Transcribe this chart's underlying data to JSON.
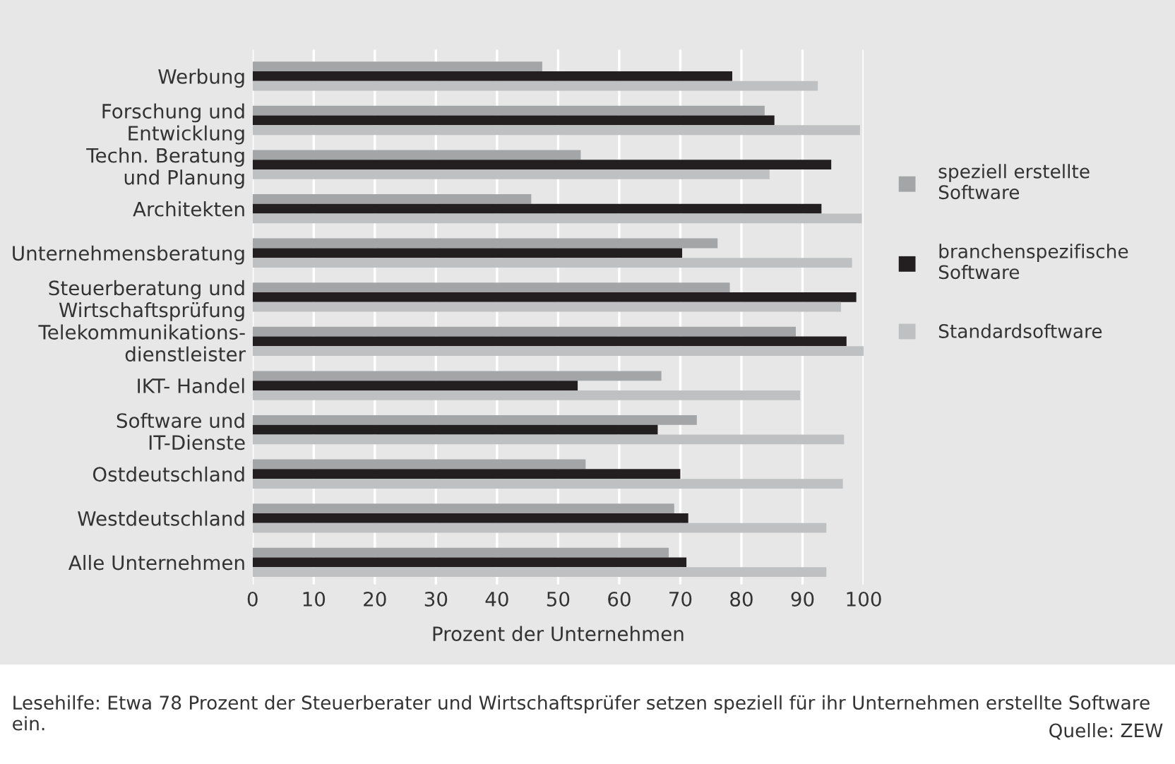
{
  "chart_data": {
    "type": "bar",
    "orientation": "horizontal",
    "xlabel": "Prozent der Unternehmen",
    "categories": [
      "Werbung",
      "Forschung und\nEntwicklung",
      "Techn. Beratung\nund Planung",
      "Architekten",
      "Unternehmensberatung",
      "Steuerberatung und\nWirtschaftsprüfung",
      "Telekommunikations-\ndienstleister",
      "IKT- Handel",
      "Software und\nIT-Dienste",
      "Ostdeutschland",
      "Westdeutschland",
      "Alle Unternehmen"
    ],
    "series": [
      {
        "name": "speziell erstellte\nSoftware",
        "color": "#a4a5a7",
        "values": [
          47.4,
          83.8,
          53.7,
          45.6,
          76.1,
          78.1,
          88.9,
          66.9,
          72.7,
          54.5,
          69.0,
          68.1
        ]
      },
      {
        "name": "branchenspezifische\nSoftware",
        "color": "#231f20",
        "values": [
          78.5,
          85.4,
          94.7,
          93.1,
          70.3,
          98.8,
          97.2,
          53.2,
          66.3,
          70.0,
          71.3,
          71.0
        ]
      },
      {
        "name": "Standardsoftware",
        "color": "#bfc0c1",
        "values": [
          92.5,
          99.4,
          84.6,
          99.7,
          98.1,
          96.3,
          100,
          89.6,
          96.8,
          96.6,
          93.9,
          93.9
        ]
      }
    ],
    "xlim": [
      0,
      100
    ],
    "xticks": [
      0,
      10,
      20,
      30,
      40,
      50,
      60,
      70,
      80,
      90,
      100
    ],
    "grid": "x",
    "legend": "right",
    "annotations": [
      "Lesehilfe: Etwa 78 Prozent der Steuerberater und Wirtschaftsprüfer setzen speziell für ihr Unternehmen erstellte Software ein.",
      "Quelle: ZEW"
    ]
  }
}
